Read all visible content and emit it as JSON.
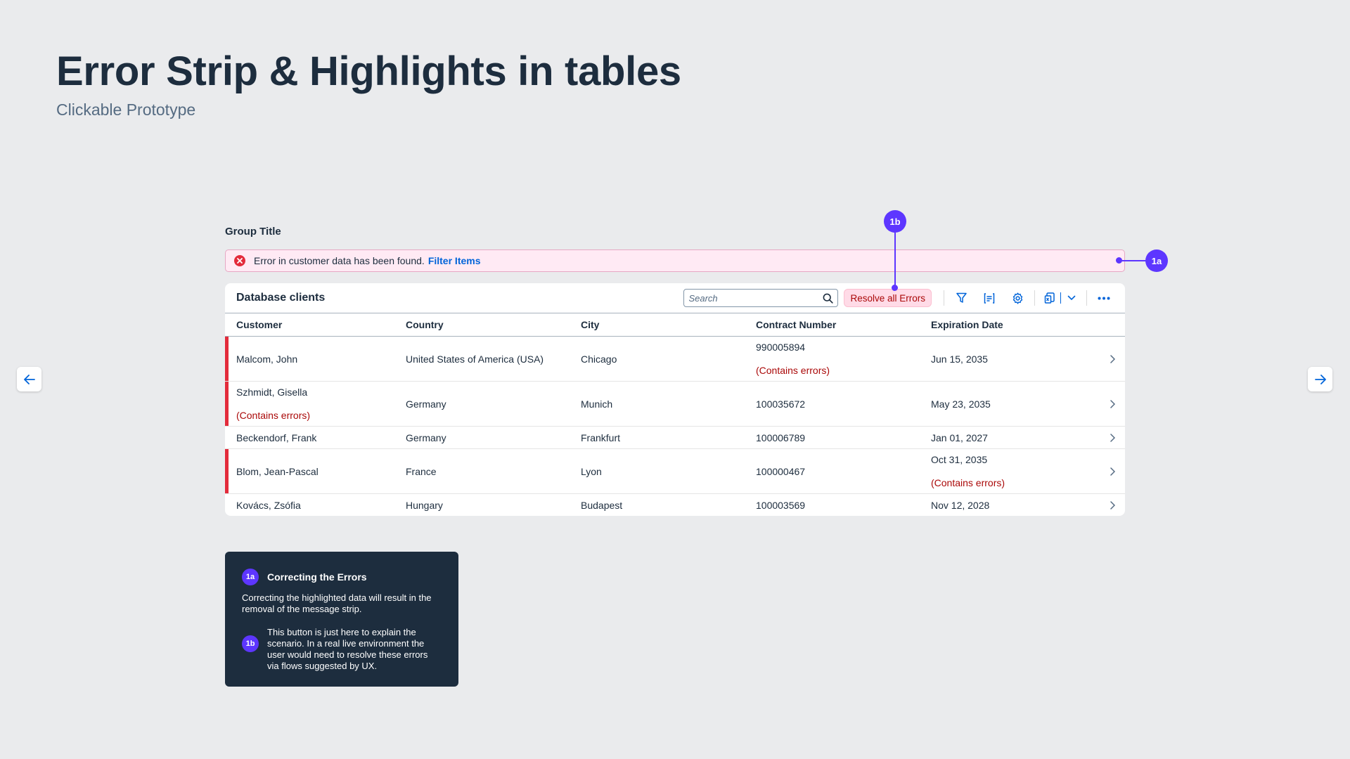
{
  "page": {
    "title": "Error Strip & Highlights in tables",
    "subtitle": "Clickable Prototype"
  },
  "group_title": "Group Title",
  "error_strip": {
    "message": "Error in customer data has been found.",
    "link": "Filter Items"
  },
  "table": {
    "title": "Database clients",
    "search_placeholder": "Search",
    "resolve_button": "Resolve all Errors",
    "columns": [
      "Customer",
      "Country",
      "City",
      "Contract Number",
      "Expiration Date"
    ],
    "error_label": "(Contains errors)",
    "rows": [
      {
        "customer": "Malcom, John",
        "country": "United States of America (USA)",
        "city": "Chicago",
        "contract": "990005894",
        "expiration": "Jun 15, 2035",
        "error_column": "contract"
      },
      {
        "customer": "Szhmidt, Gisella",
        "country": "Germany",
        "city": "Munich",
        "contract": "100035672",
        "expiration": "May 23, 2035",
        "error_column": "customer"
      },
      {
        "customer": "Beckendorf, Frank",
        "country": "Germany",
        "city": "Frankfurt",
        "contract": "100006789",
        "expiration": "Jan 01, 2027",
        "error_column": ""
      },
      {
        "customer": "Blom, Jean-Pascal",
        "country": "France",
        "city": "Lyon",
        "contract": "100000467",
        "expiration": "Oct 31, 2035",
        "error_column": "expiration"
      },
      {
        "customer": "Kovács, Zsófia",
        "country": "Hungary",
        "city": "Budapest",
        "contract": "100003569",
        "expiration": "Nov 12, 2028",
        "error_column": ""
      }
    ]
  },
  "markers": {
    "a": "1a",
    "b": "1b"
  },
  "info_card": {
    "title": "Correcting the Errors",
    "text_a": "Correcting the highlighted data will result in the removal of the message strip.",
    "text_b": "This button is just here to explain the scenario. In a real live environment the user would need to resolve these errors via flows suggested by UX."
  },
  "colors": {
    "accent_marker": "#5d36ff",
    "error": "#e32b3b",
    "error_text": "#aa0808",
    "link": "#0064d9"
  },
  "icons": [
    "arrow-left-icon",
    "arrow-right-icon",
    "error-icon",
    "search-icon",
    "filter-icon",
    "sort-icon",
    "settings-icon",
    "export-icon",
    "chevron-down-icon",
    "more-icon",
    "navigation-arrow-icon"
  ]
}
